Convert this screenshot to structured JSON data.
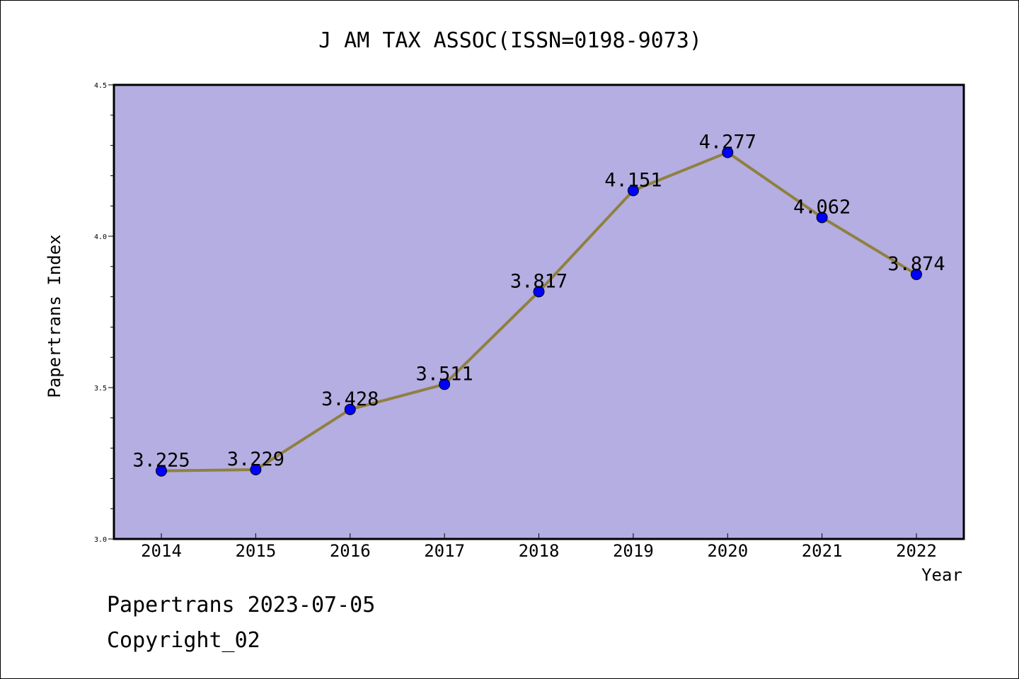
{
  "chart_data": {
    "type": "line",
    "title": "J AM TAX ASSOC(ISSN=0198-9073)",
    "xlabel": "Year",
    "ylabel": "Papertrans Index",
    "x": [
      "2014",
      "2015",
      "2016",
      "2017",
      "2018",
      "2019",
      "2020",
      "2021",
      "2022"
    ],
    "values": [
      3.225,
      3.229,
      3.428,
      3.511,
      3.817,
      4.151,
      4.277,
      4.062,
      3.874
    ],
    "data_labels": [
      "3.225",
      "3.229",
      "3.428",
      "3.511",
      "3.817",
      "4.151",
      "4.277",
      "4.062",
      "3.874"
    ],
    "ylim": [
      3.0,
      4.5
    ],
    "yticks": [
      "3.0",
      "3.5",
      "4.0",
      "4.5"
    ],
    "yticks_values": [
      3.0,
      3.5,
      4.0,
      4.5
    ],
    "grid": false,
    "colors": {
      "plot_background": "#b5aee2",
      "line": "#8f8040",
      "marker": "#0000ff"
    }
  },
  "footer": {
    "date_line": "Papertrans 2023-07-05",
    "copyright": "Copyright_02"
  }
}
